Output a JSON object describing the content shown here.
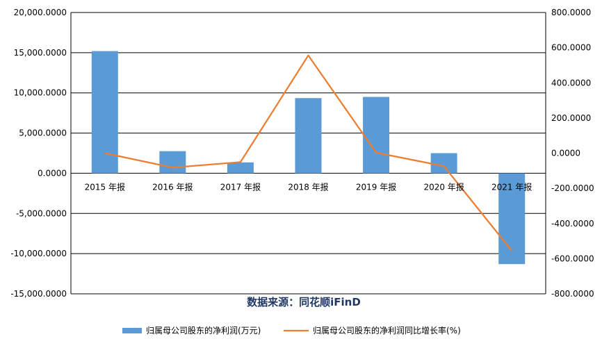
{
  "chart_data": {
    "type": "bar",
    "categories": [
      "2015 年报",
      "2016 年报",
      "2017 年报",
      "2018 年报",
      "2019 年报",
      "2020 年报",
      "2021 年报"
    ],
    "series": [
      {
        "name": "归属母公司股东的净利润(万元)",
        "type": "bar",
        "axis": "left",
        "color": "#5b9bd5",
        "values": [
          15200,
          2750,
          1350,
          9350,
          9500,
          2500,
          -11300
        ]
      },
      {
        "name": "归属母公司股东的净利润同比增长率(%)",
        "type": "line",
        "axis": "right",
        "color": "#ed7d31",
        "values": [
          0,
          -82,
          -51,
          556,
          3,
          -74,
          -555
        ]
      }
    ],
    "left_axis": {
      "ylim": [
        -15000,
        20000
      ],
      "ticks": [
        "20,000.0000",
        "15,000.0000",
        "10,000.0000",
        "5,000.0000",
        "0.0000",
        "-5,000.0000",
        "-10,000.0000",
        "-15,000.0000"
      ]
    },
    "right_axis": {
      "ylim": [
        -800,
        800
      ],
      "ticks": [
        "800.0000",
        "600.0000",
        "400.0000",
        "200.0000",
        "0.0000",
        "-200.0000",
        "-400.0000",
        "-600.0000",
        "-800.0000"
      ]
    },
    "grid": true,
    "legend_position": "bottom",
    "source_note": "数据来源：同花顺iFinD"
  }
}
